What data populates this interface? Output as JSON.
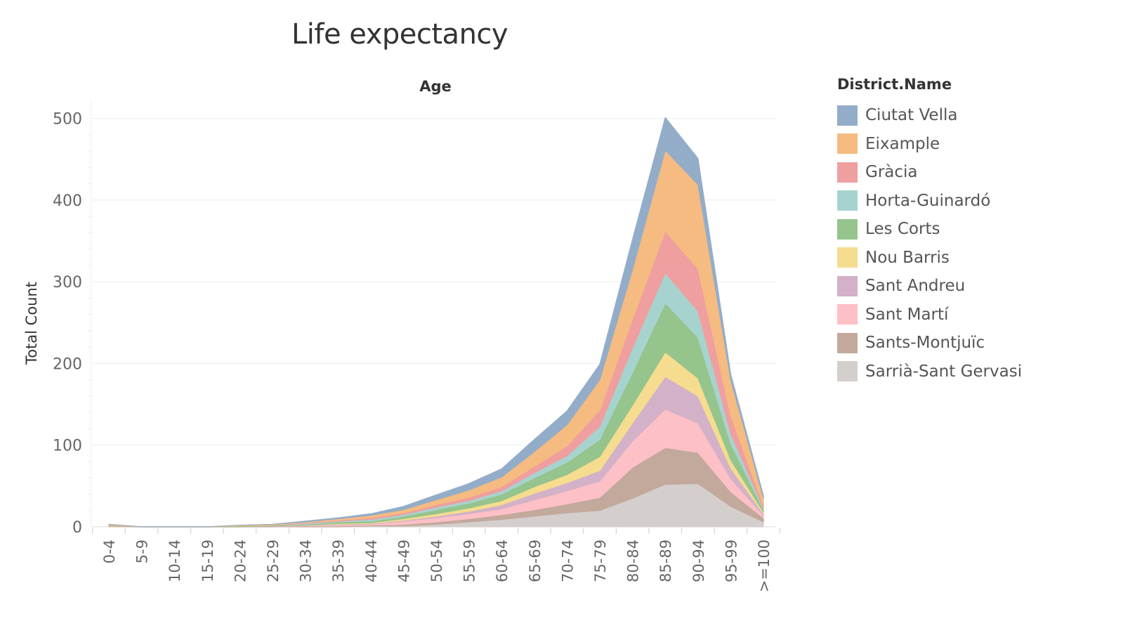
{
  "chart_data": {
    "type": "area",
    "stacked": true,
    "title": "Life expectancy",
    "xlabel": "Age",
    "ylabel": "Total Count",
    "ylim": [
      0,
      500
    ],
    "yticks": [
      0,
      100,
      200,
      300,
      400,
      500
    ],
    "grid": true,
    "legend_title": "District.Name",
    "legend_position": "right",
    "categories": [
      "0-4",
      "5-9",
      "10-14",
      "15-19",
      "20-24",
      "25-29",
      "30-34",
      "35-39",
      "40-44",
      "45-49",
      "50-54",
      "55-59",
      "60-64",
      "65-69",
      "70-74",
      "75-79",
      "80-84",
      "85-89",
      "90-94",
      "95-99",
      ">=100"
    ],
    "series": [
      {
        "name": "Sarrià-Sant Gervasi",
        "color": "#d4cfcc",
        "values": [
          0,
          0,
          0,
          0,
          0,
          0,
          0,
          0,
          1,
          1,
          3,
          6,
          9,
          13,
          17,
          20,
          35,
          52,
          53,
          25,
          6
        ]
      },
      {
        "name": "Sants-Montjuïc",
        "color": "#c2a99c",
        "values": [
          0,
          0,
          0,
          0,
          0,
          0,
          1,
          1,
          1,
          2,
          3,
          4,
          6,
          8,
          11,
          16,
          38,
          45,
          38,
          18,
          5
        ]
      },
      {
        "name": "Sant Martí",
        "color": "#fdc0c6",
        "values": [
          1,
          0,
          0,
          0,
          0,
          0,
          1,
          1,
          1,
          4,
          5,
          6,
          7,
          12,
          16,
          20,
          32,
          47,
          36,
          16,
          3
        ]
      },
      {
        "name": "Sant Andreu",
        "color": "#d3b1c8",
        "values": [
          0,
          0,
          0,
          0,
          0,
          1,
          0,
          1,
          1,
          1,
          2,
          3,
          5,
          8,
          10,
          13,
          22,
          40,
          33,
          13,
          2
        ]
      },
      {
        "name": "Nou Barris",
        "color": "#f5dc8e",
        "values": [
          0,
          0,
          0,
          0,
          0,
          0,
          0,
          1,
          1,
          2,
          3,
          4,
          5,
          8,
          10,
          17,
          22,
          30,
          22,
          10,
          2
        ]
      },
      {
        "name": "Les Corts",
        "color": "#95c48d",
        "values": [
          1,
          0,
          0,
          0,
          1,
          1,
          1,
          2,
          2,
          3,
          5,
          6,
          8,
          11,
          15,
          21,
          40,
          60,
          50,
          20,
          3
        ]
      },
      {
        "name": "Horta-Guinardó",
        "color": "#a7d3cf",
        "values": [
          0,
          0,
          0,
          0,
          0,
          0,
          1,
          1,
          2,
          2,
          3,
          3,
          4,
          6,
          8,
          16,
          30,
          37,
          32,
          12,
          2
        ]
      },
      {
        "name": "Gràcia",
        "color": "#ef9f9f",
        "values": [
          0,
          0,
          0,
          0,
          0,
          0,
          1,
          1,
          2,
          2,
          3,
          4,
          5,
          8,
          12,
          20,
          35,
          51,
          52,
          22,
          3
        ]
      },
      {
        "name": "Eixample",
        "color": "#f6bb80",
        "values": [
          1,
          0,
          0,
          0,
          1,
          1,
          1,
          2,
          3,
          4,
          6,
          9,
          12,
          18,
          26,
          37,
          61,
          99,
          103,
          44,
          9
        ]
      },
      {
        "name": "Ciutat Vella",
        "color": "#93adc9",
        "values": [
          0,
          0,
          0,
          0,
          0,
          0,
          1,
          1,
          2,
          4,
          6,
          8,
          10,
          15,
          17,
          19,
          37,
          40,
          32,
          7,
          3
        ]
      }
    ],
    "legend_order": [
      "Ciutat Vella",
      "Eixample",
      "Gràcia",
      "Horta-Guinardó",
      "Les Corts",
      "Nou Barris",
      "Sant Andreu",
      "Sant Martí",
      "Sants-Montjuïc",
      "Sarrià-Sant Gervasi"
    ]
  }
}
